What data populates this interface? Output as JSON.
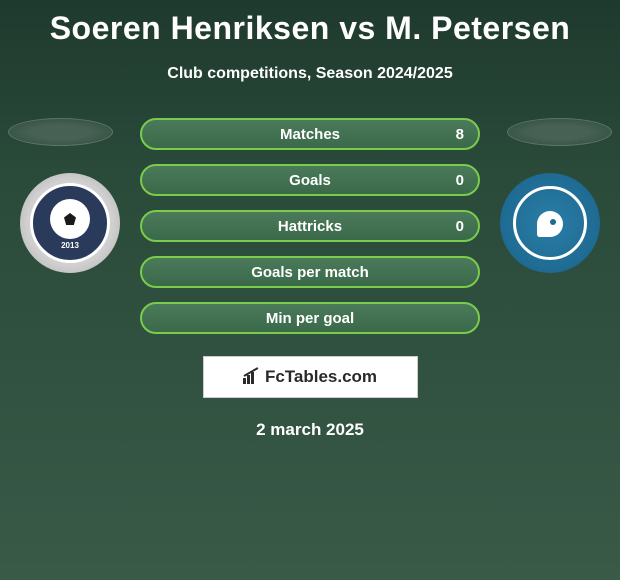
{
  "title": "Soeren Henriksen vs M. Petersen",
  "subtitle": "Club competitions, Season 2024/2025",
  "stats": [
    {
      "label": "Matches",
      "value": "8"
    },
    {
      "label": "Goals",
      "value": "0"
    },
    {
      "label": "Hattricks",
      "value": "0"
    },
    {
      "label": "Goals per match",
      "value": ""
    },
    {
      "label": "Min per goal",
      "value": ""
    }
  ],
  "brand": "FcTables.com",
  "date": "2 march 2025",
  "left_badge": {
    "name": "VENDSYSSEL FF",
    "year": "2013"
  },
  "right_badge": {
    "name": "FC ROSKILDE"
  },
  "colors": {
    "bg_top": "#1e3a2e",
    "bg_bottom": "#3a5a48",
    "pill_border": "#7acc4a",
    "pill_bg": "#4a7a5a",
    "text": "#ffffff",
    "left_badge_bg": "#2a3a5a",
    "right_badge_bg": "#2a7fa8"
  }
}
